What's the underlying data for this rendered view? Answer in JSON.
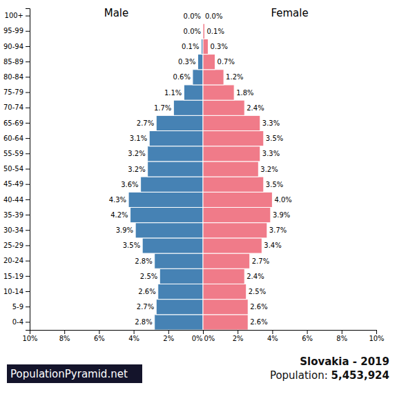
{
  "chart_data": {
    "type": "bar",
    "orientation": "horizontal",
    "title": "Slovakia - 2019",
    "subtitle": "Population: 5,453,924",
    "annotations": [
      "PopulationPyramid.net"
    ],
    "categories": [
      "0-4",
      "5-9",
      "10-14",
      "15-19",
      "20-24",
      "25-29",
      "30-34",
      "35-39",
      "40-44",
      "45-49",
      "50-54",
      "55-59",
      "60-64",
      "65-69",
      "70-74",
      "75-79",
      "80-84",
      "85-89",
      "90-94",
      "95-99",
      "100+"
    ],
    "series": [
      {
        "name": "Male",
        "color": "#4682b4",
        "values": [
          2.8,
          2.7,
          2.6,
          2.5,
          2.8,
          3.5,
          3.9,
          4.2,
          4.3,
          3.6,
          3.2,
          3.2,
          3.1,
          2.7,
          1.7,
          1.1,
          0.6,
          0.3,
          0.1,
          0.0,
          0.0
        ],
        "value_labels": [
          "2.8%",
          "2.7%",
          "2.6%",
          "2.5%",
          "2.8%",
          "3.5%",
          "3.9%",
          "4.2%",
          "4.3%",
          "3.6%",
          "3.2%",
          "3.2%",
          "3.1%",
          "2.7%",
          "1.7%",
          "1.1%",
          "0.6%",
          "0.3%",
          "0.1%",
          "0.0%",
          "0.0%"
        ]
      },
      {
        "name": "Female",
        "color": "#f07b89",
        "values": [
          2.6,
          2.6,
          2.5,
          2.4,
          2.7,
          3.4,
          3.7,
          3.9,
          4.0,
          3.5,
          3.2,
          3.3,
          3.5,
          3.3,
          2.4,
          1.8,
          1.2,
          0.7,
          0.3,
          0.1,
          0.0
        ],
        "value_labels": [
          "2.6%",
          "2.6%",
          "2.5%",
          "2.4%",
          "2.7%",
          "3.4%",
          "3.7%",
          "3.9%",
          "4.0%",
          "3.5%",
          "3.2%",
          "3.3%",
          "3.5%",
          "3.3%",
          "2.4%",
          "1.8%",
          "1.2%",
          "0.7%",
          "0.3%",
          "0.1%",
          "0.0%"
        ]
      }
    ],
    "xlim": [
      0,
      10
    ],
    "xticks": [
      {
        "value": 0,
        "label": "0%"
      },
      {
        "value": 2,
        "label": "2%"
      },
      {
        "value": 4,
        "label": "4%"
      },
      {
        "value": 6,
        "label": "6%"
      },
      {
        "value": 8,
        "label": "8%"
      },
      {
        "value": 10,
        "label": "10%"
      }
    ],
    "data_labels": true
  }
}
